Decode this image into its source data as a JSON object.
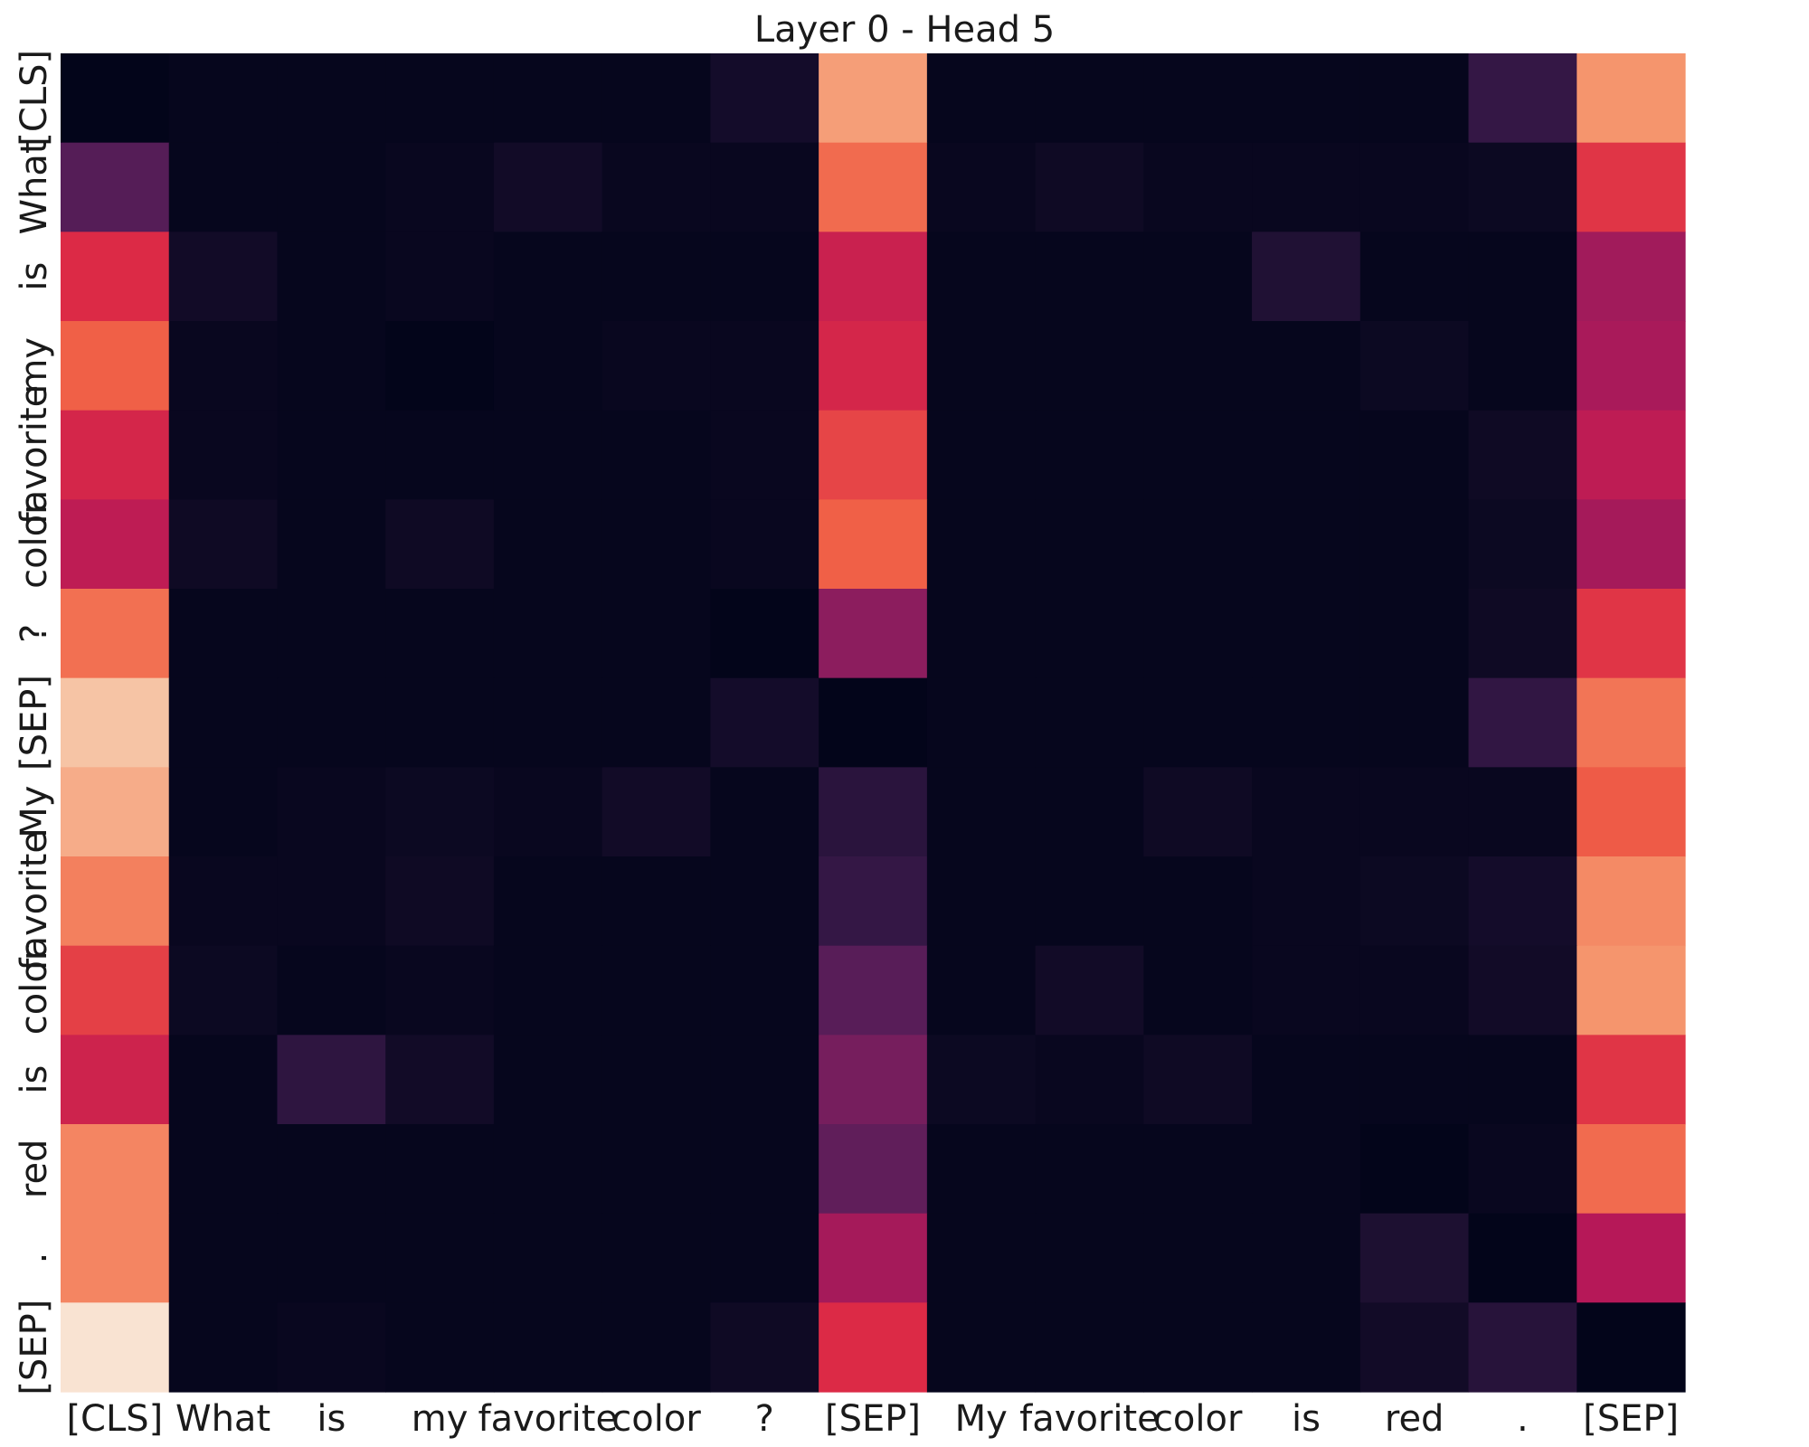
{
  "chart_data": {
    "type": "heatmap",
    "title": "Layer 0 - Head 5",
    "xlabel": "",
    "ylabel": "",
    "colormap": "rocket",
    "value_range": [
      0,
      1
    ],
    "colorbar": false,
    "x_tokens": [
      "[CLS]",
      "What",
      "is",
      "my",
      "favorite",
      "color",
      "?",
      "[SEP]",
      "My",
      "favorite",
      "color",
      "is",
      "red",
      ".",
      "[SEP]"
    ],
    "y_tokens": [
      "[CLS]",
      "What",
      "is",
      "my",
      "favorite",
      "color",
      "?",
      "[SEP]",
      "My",
      "favorite",
      "color",
      "is",
      "red",
      ".",
      "[SEP]"
    ],
    "values": [
      [
        0.0,
        0.01,
        0.01,
        0.01,
        0.01,
        0.01,
        0.06,
        0.82,
        0.01,
        0.01,
        0.01,
        0.01,
        0.01,
        0.16,
        0.8
      ],
      [
        0.25,
        0.01,
        0.01,
        0.02,
        0.05,
        0.02,
        0.02,
        0.72,
        0.02,
        0.04,
        0.02,
        0.02,
        0.02,
        0.03,
        0.62
      ],
      [
        0.6,
        0.05,
        0.01,
        0.02,
        0.01,
        0.01,
        0.01,
        0.55,
        0.01,
        0.01,
        0.01,
        0.1,
        0.01,
        0.01,
        0.45
      ],
      [
        0.7,
        0.02,
        0.01,
        0.0,
        0.01,
        0.02,
        0.02,
        0.58,
        0.01,
        0.01,
        0.01,
        0.01,
        0.03,
        0.01,
        0.47
      ],
      [
        0.58,
        0.02,
        0.01,
        0.01,
        0.01,
        0.01,
        0.02,
        0.65,
        0.01,
        0.01,
        0.01,
        0.01,
        0.01,
        0.04,
        0.52
      ],
      [
        0.52,
        0.04,
        0.01,
        0.04,
        0.01,
        0.01,
        0.02,
        0.7,
        0.01,
        0.01,
        0.01,
        0.01,
        0.01,
        0.03,
        0.46
      ],
      [
        0.73,
        0.01,
        0.01,
        0.01,
        0.01,
        0.01,
        0.0,
        0.4,
        0.01,
        0.01,
        0.01,
        0.01,
        0.01,
        0.04,
        0.62
      ],
      [
        0.9,
        0.01,
        0.01,
        0.01,
        0.01,
        0.01,
        0.06,
        0.0,
        0.01,
        0.01,
        0.01,
        0.01,
        0.01,
        0.15,
        0.74
      ],
      [
        0.85,
        0.01,
        0.02,
        0.03,
        0.02,
        0.05,
        0.01,
        0.13,
        0.01,
        0.01,
        0.04,
        0.02,
        0.02,
        0.02,
        0.69
      ],
      [
        0.76,
        0.02,
        0.02,
        0.04,
        0.01,
        0.01,
        0.01,
        0.16,
        0.01,
        0.01,
        0.01,
        0.02,
        0.03,
        0.06,
        0.78
      ],
      [
        0.64,
        0.03,
        0.01,
        0.02,
        0.01,
        0.01,
        0.01,
        0.26,
        0.01,
        0.05,
        0.01,
        0.02,
        0.02,
        0.05,
        0.8
      ],
      [
        0.56,
        0.01,
        0.14,
        0.05,
        0.01,
        0.01,
        0.01,
        0.34,
        0.03,
        0.02,
        0.04,
        0.01,
        0.01,
        0.01,
        0.62
      ],
      [
        0.77,
        0.01,
        0.01,
        0.01,
        0.01,
        0.01,
        0.01,
        0.28,
        0.01,
        0.01,
        0.01,
        0.01,
        0.0,
        0.02,
        0.72
      ],
      [
        0.77,
        0.01,
        0.01,
        0.01,
        0.01,
        0.01,
        0.01,
        0.46,
        0.01,
        0.01,
        0.01,
        0.01,
        0.09,
        0.0,
        0.5
      ],
      [
        0.98,
        0.01,
        0.02,
        0.01,
        0.01,
        0.01,
        0.04,
        0.6,
        0.01,
        0.01,
        0.01,
        0.01,
        0.05,
        0.12,
        0.0
      ]
    ]
  }
}
